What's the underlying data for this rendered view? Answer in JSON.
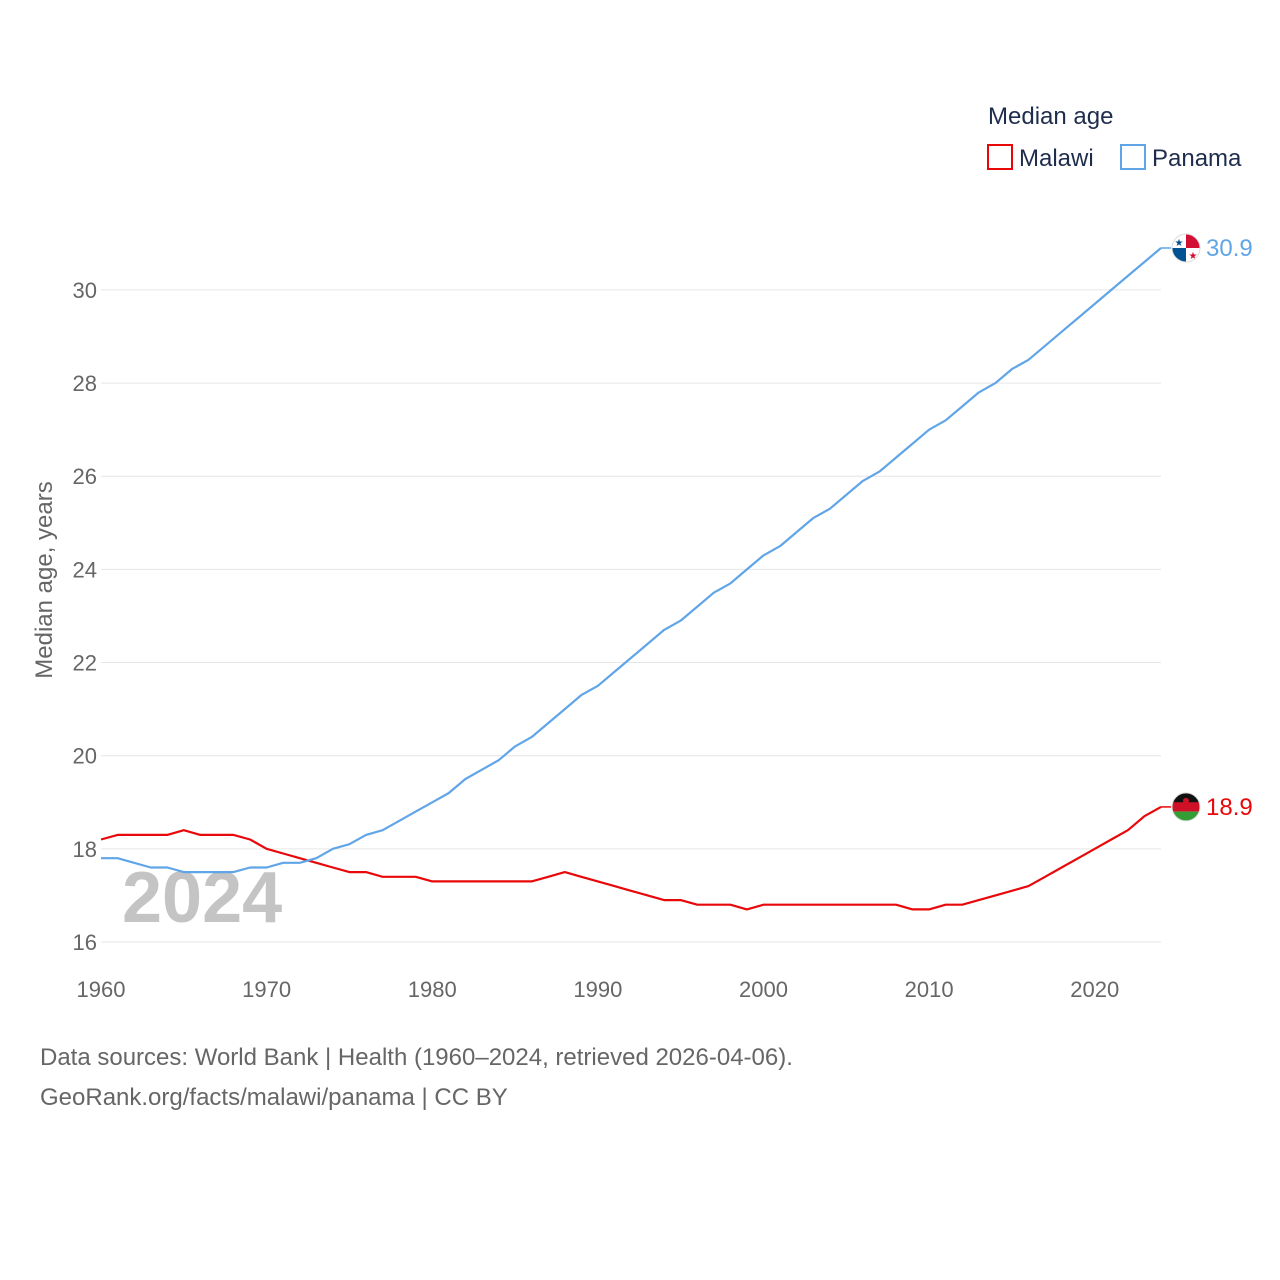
{
  "chart_data": {
    "type": "line",
    "title": "",
    "xlabel": "",
    "ylabel": "Median age, years",
    "xlim": [
      1960,
      2024
    ],
    "ylim": [
      16,
      31
    ],
    "xticks": [
      1960,
      1970,
      1980,
      1990,
      2000,
      2010,
      2020
    ],
    "yticks": [
      16,
      18,
      20,
      22,
      24,
      26,
      28,
      30
    ],
    "legend_title": "Median age",
    "legend_position": "top-right",
    "year_watermark": "2024",
    "x": [
      1960,
      1961,
      1962,
      1963,
      1964,
      1965,
      1966,
      1967,
      1968,
      1969,
      1970,
      1971,
      1972,
      1973,
      1974,
      1975,
      1976,
      1977,
      1978,
      1979,
      1980,
      1981,
      1982,
      1983,
      1984,
      1985,
      1986,
      1987,
      1988,
      1989,
      1990,
      1991,
      1992,
      1993,
      1994,
      1995,
      1996,
      1997,
      1998,
      1999,
      2000,
      2001,
      2002,
      2003,
      2004,
      2005,
      2006,
      2007,
      2008,
      2009,
      2010,
      2011,
      2012,
      2013,
      2014,
      2015,
      2016,
      2017,
      2018,
      2019,
      2020,
      2021,
      2022,
      2023,
      2024
    ],
    "series": [
      {
        "name": "Malawi",
        "color": "#e8080a",
        "end_label": "18.9",
        "values": [
          18.2,
          18.3,
          18.3,
          18.3,
          18.3,
          18.4,
          18.3,
          18.3,
          18.3,
          18.2,
          18.0,
          17.9,
          17.8,
          17.7,
          17.6,
          17.5,
          17.5,
          17.4,
          17.4,
          17.4,
          17.3,
          17.3,
          17.3,
          17.3,
          17.3,
          17.3,
          17.3,
          17.4,
          17.5,
          17.4,
          17.3,
          17.2,
          17.1,
          17.0,
          16.9,
          16.9,
          16.8,
          16.8,
          16.8,
          16.7,
          16.8,
          16.8,
          16.8,
          16.8,
          16.8,
          16.8,
          16.8,
          16.8,
          16.8,
          16.7,
          16.7,
          16.8,
          16.8,
          16.9,
          17.0,
          17.1,
          17.2,
          17.4,
          17.6,
          17.8,
          18.0,
          18.2,
          18.4,
          18.7,
          18.9
        ]
      },
      {
        "name": "Panama",
        "color": "#60a5e8",
        "end_label": "30.9",
        "values": [
          17.8,
          17.8,
          17.7,
          17.6,
          17.6,
          17.5,
          17.5,
          17.5,
          17.5,
          17.6,
          17.6,
          17.7,
          17.7,
          17.8,
          18.0,
          18.1,
          18.3,
          18.4,
          18.6,
          18.8,
          19.0,
          19.2,
          19.5,
          19.7,
          19.9,
          20.2,
          20.4,
          20.7,
          21.0,
          21.3,
          21.5,
          21.8,
          22.1,
          22.4,
          22.7,
          22.9,
          23.2,
          23.5,
          23.7,
          24.0,
          24.3,
          24.5,
          24.8,
          25.1,
          25.3,
          25.6,
          25.9,
          26.1,
          26.4,
          26.7,
          27.0,
          27.2,
          27.5,
          27.8,
          28.0,
          28.3,
          28.5,
          28.8,
          29.1,
          29.4,
          29.7,
          30.0,
          30.3,
          30.6,
          30.9
        ]
      }
    ]
  },
  "footer": {
    "line1": "Data sources: World Bank | Health (1960–2024, retrieved 2026-04-06).",
    "line2": "GeoRank.org/facts/malawi/panama | CC BY"
  },
  "flags": {
    "malawi_icon": "malawi-flag-icon",
    "panama_icon": "panama-flag-icon"
  }
}
